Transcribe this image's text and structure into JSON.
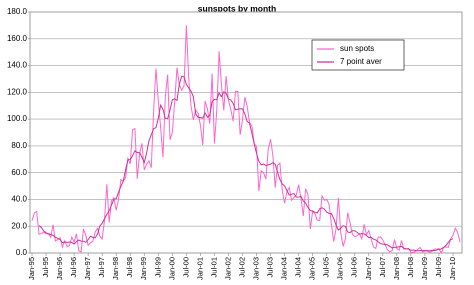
{
  "chart_data": {
    "type": "line",
    "title": "sunspots by month",
    "categories": [
      "Jan-95",
      null,
      null,
      null,
      null,
      null,
      "Jul-95",
      null,
      null,
      null,
      null,
      null,
      "Jan-96",
      null,
      null,
      null,
      null,
      null,
      "Jul-96",
      null,
      null,
      null,
      null,
      null,
      "Jan-97",
      null,
      null,
      null,
      null,
      null,
      "Jul-97",
      null,
      null,
      null,
      null,
      null,
      "Jan-98",
      null,
      null,
      null,
      null,
      null,
      "Jul-98",
      null,
      null,
      null,
      null,
      null,
      "Jan-99",
      null,
      null,
      null,
      null,
      null,
      "Jul-99",
      null,
      null,
      null,
      null,
      null,
      "Jan-00",
      null,
      null,
      null,
      null,
      null,
      "Jul-00",
      null,
      null,
      null,
      null,
      null,
      "Jan-01",
      null,
      null,
      null,
      null,
      null,
      "Jul-01",
      null,
      null,
      null,
      null,
      null,
      "Jan-02",
      null,
      null,
      null,
      null,
      null,
      "Jul-02",
      null,
      null,
      null,
      null,
      null,
      "Jan-03",
      null,
      null,
      null,
      null,
      null,
      "Jul-03",
      null,
      null,
      null,
      null,
      null,
      "Jan-04",
      null,
      null,
      null,
      null,
      null,
      "Jul-04",
      null,
      null,
      null,
      null,
      null,
      "Jan-05",
      null,
      null,
      null,
      null,
      null,
      "Jul-05",
      null,
      null,
      null,
      null,
      null,
      "Jan-06",
      null,
      null,
      null,
      null,
      null,
      "Jul-06",
      null,
      null,
      null,
      null,
      null,
      "Jan-07",
      null,
      null,
      null,
      null,
      null,
      "Jul-07",
      null,
      null,
      null,
      null,
      null,
      "Jan-08",
      null,
      null,
      null,
      null,
      null,
      "Jul-08",
      null,
      null,
      null,
      null,
      null,
      "Jan-09",
      null,
      null,
      null,
      null,
      null,
      "Jul-09",
      null,
      null,
      null,
      null,
      null,
      "Jan-10",
      null,
      null,
      null
    ],
    "series": [
      {
        "name": "sun spots",
        "color": "#ff66cc",
        "values": [
          24.2,
          29.9,
          31.1,
          14.0,
          14.5,
          15.6,
          14.5,
          14.3,
          11.8,
          21.1,
          9.0,
          10.0,
          11.5,
          4.4,
          9.2,
          4.8,
          5.5,
          11.8,
          8.2,
          14.4,
          1.6,
          0.9,
          17.9,
          13.3,
          5.7,
          7.6,
          8.7,
          15.5,
          18.5,
          12.7,
          10.4,
          24.4,
          51.3,
          22.8,
          39.0,
          41.2,
          31.9,
          40.3,
          54.8,
          53.4,
          56.3,
          70.7,
          66.6,
          92.2,
          92.9,
          55.5,
          74.0,
          81.9,
          62.0,
          66.3,
          68.8,
          63.7,
          106.4,
          137.7,
          113.5,
          93.7,
          71.5,
          116.7,
          133.2,
          84.6,
          90.1,
          112.9,
          138.5,
          125.5,
          121.6,
          124.9,
          170.1,
          130.5,
          109.7,
          99.4,
          106.8,
          104.4,
          95.6,
          80.6,
          113.5,
          107.7,
          96.6,
          134.0,
          81.8,
          106.4,
          150.7,
          125.5,
          106.5,
          132.2,
          114.1,
          107.4,
          98.4,
          120.7,
          120.8,
          88.3,
          99.6,
          116.4,
          109.6,
          97.5,
          95.0,
          81.6,
          79.5,
          46.2,
          61.5,
          60.0,
          55.2,
          77.4,
          85.0,
          72.7,
          48.8,
          65.6,
          67.2,
          46.5,
          37.2,
          46.0,
          48.9,
          39.3,
          41.5,
          43.2,
          51.0,
          40.9,
          27.7,
          48.0,
          43.5,
          17.9,
          31.3,
          29.2,
          24.5,
          24.2,
          42.7,
          39.3,
          40.1,
          36.4,
          22.1,
          8.5,
          18.0,
          41.2,
          15.3,
          4.9,
          10.6,
          30.2,
          22.3,
          13.9,
          12.2,
          12.9,
          14.4,
          10.5,
          21.4,
          13.6,
          16.8,
          10.7,
          4.5,
          3.4,
          11.7,
          12.1,
          9.7,
          6.0,
          2.4,
          0.9,
          1.7,
          10.1,
          3.3,
          2.1,
          9.3,
          2.9,
          3.2,
          3.4,
          0.5,
          0.5,
          1.1,
          2.9,
          4.1,
          0.8,
          1.5,
          1.4,
          0.7,
          1.2,
          2.9,
          2.9,
          3.2,
          0.0,
          4.2,
          4.6,
          4.2,
          10.6,
          13.1,
          18.6,
          15.4,
          8.0
        ]
      },
      {
        "name": "7 point aver",
        "color": "#cc3399",
        "values": [
          null,
          null,
          null,
          20.5,
          19.1,
          16.5,
          15.1,
          14.4,
          13.8,
          13.2,
          11.7,
          11.0,
          10.0,
          7.8,
          8.2,
          7.9,
          8.3,
          7.9,
          6.7,
          8.6,
          9.7,
          8.9,
          8.8,
          8.0,
          9.9,
          12.5,
          11.7,
          11.3,
          14.0,
          20.2,
          22.2,
          25.6,
          28.8,
          31.6,
          35.8,
          40.2,
          40.5,
          45.3,
          49.8,
          53.4,
          62.0,
          69.6,
          69.7,
          72.6,
          76.3,
          75.0,
          75.0,
          71.6,
          67.5,
          74.7,
          83.8,
          88.3,
          92.9,
          93.6,
          100.5,
          110.4,
          107.3,
          100.5,
          100.4,
          106.8,
          114.5,
          115.2,
          114.0,
          126.2,
          132.0,
          131.5,
          126.0,
          123.3,
          120.8,
          116.6,
          103.9,
          101.4,
          101.1,
          100.7,
          104.6,
          101.4,
          102.9,
          113.0,
          114.7,
          114.5,
          119.6,
          116.7,
          120.4,
          119.3,
          115.0,
          114.3,
          111.7,
          107.0,
          107.4,
          107.7,
          107.6,
          103.9,
          98.3,
          97.0,
          89.4,
          81.6,
          74.5,
          68.4,
          65.9,
          66.4,
          65.4,
          65.8,
          66.4,
          67.4,
          66.2,
          60.4,
          54.9,
          51.5,
          50.1,
          46.7,
          43.2,
          43.9,
          44.4,
          41.8,
          41.7,
          42.3,
          38.9,
          37.2,
          34.1,
          31.7,
          31.2,
          30.5,
          29.9,
          33.0,
          33.8,
          32.8,
          30.5,
          29.6,
          29.4,
          25.9,
          20.9,
          17.2,
          18.4,
          20.4,
          19.8,
          15.6,
          15.3,
          16.6,
          16.6,
          15.4,
          14.1,
          14.5,
          14.3,
          13.1,
          11.6,
          11.7,
          10.4,
          9.8,
          8.3,
          7.1,
          6.6,
          6.4,
          6.1,
          4.9,
          3.8,
          4.3,
          4.3,
          4.7,
          4.9,
          3.5,
          3.1,
          3.0,
          2.1,
          2.2,
          1.9,
          1.6,
          1.8,
          1.8,
          1.8,
          1.8,
          1.6,
          2.0,
          1.8,
          2.2,
          2.7,
          3.1,
          4.2,
          5.7,
          7.9,
          10.1,
          10.6,
          null,
          null,
          null
        ]
      }
    ],
    "ylim": [
      0,
      180
    ],
    "yticks": [
      {
        "value": 0,
        "label": "0.0"
      },
      {
        "value": 20,
        "label": "20.0"
      },
      {
        "value": 40,
        "label": "40.0"
      },
      {
        "value": 60,
        "label": "60.0"
      },
      {
        "value": 80,
        "label": "80.0"
      },
      {
        "value": 100,
        "label": "100.0"
      },
      {
        "value": 120,
        "label": "120.0"
      },
      {
        "value": 140,
        "label": "140.0"
      },
      {
        "value": 160,
        "label": "160.0"
      },
      {
        "value": 180,
        "label": "180.0"
      }
    ],
    "grid": true,
    "legend": "upper right"
  }
}
